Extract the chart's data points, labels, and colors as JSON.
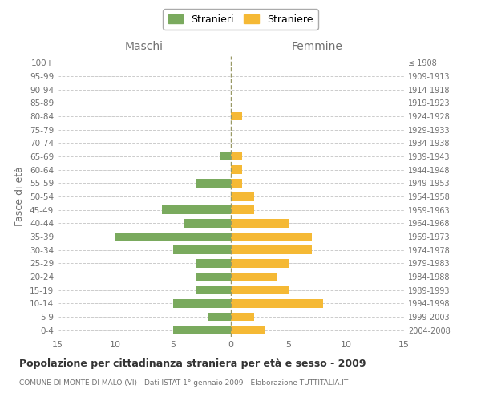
{
  "age_groups": [
    "100+",
    "95-99",
    "90-94",
    "85-89",
    "80-84",
    "75-79",
    "70-74",
    "65-69",
    "60-64",
    "55-59",
    "50-54",
    "45-49",
    "40-44",
    "35-39",
    "30-34",
    "25-29",
    "20-24",
    "15-19",
    "10-14",
    "5-9",
    "0-4"
  ],
  "anni_nascita": [
    "≤ 1908",
    "1909-1913",
    "1914-1918",
    "1919-1923",
    "1924-1928",
    "1929-1933",
    "1934-1938",
    "1939-1943",
    "1944-1948",
    "1949-1953",
    "1954-1958",
    "1959-1963",
    "1964-1968",
    "1969-1973",
    "1974-1978",
    "1979-1983",
    "1984-1988",
    "1989-1993",
    "1994-1998",
    "1999-2003",
    "2004-2008"
  ],
  "maschi": [
    0,
    0,
    0,
    0,
    0,
    0,
    0,
    1,
    0,
    3,
    0,
    6,
    4,
    10,
    5,
    3,
    3,
    3,
    5,
    2,
    5
  ],
  "femmine": [
    0,
    0,
    0,
    0,
    1,
    0,
    0,
    1,
    1,
    1,
    2,
    2,
    5,
    7,
    7,
    5,
    4,
    5,
    8,
    2,
    3
  ],
  "color_maschi": "#7aaa5e",
  "color_femmine": "#f5b935",
  "xlim": 15,
  "title": "Popolazione per cittadinanza straniera per età e sesso - 2009",
  "subtitle": "COMUNE DI MONTE DI MALO (VI) - Dati ISTAT 1° gennaio 2009 - Elaborazione TUTTITALIA.IT",
  "xlabel_left": "Maschi",
  "xlabel_right": "Femmine",
  "ylabel_left": "Fasce di età",
  "legend_stranieri": "Stranieri",
  "legend_straniere": "Straniere",
  "bg_color": "#ffffff",
  "grid_color": "#cccccc",
  "bar_height": 0.65,
  "label_color": "#707070",
  "centerline_color": "#999966"
}
